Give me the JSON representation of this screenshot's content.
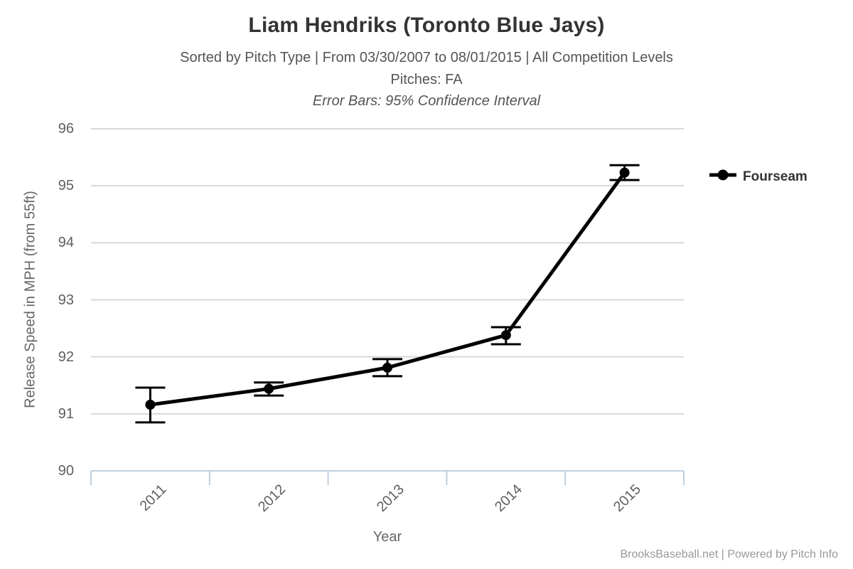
{
  "header": {
    "title": "Liam Hendriks (Toronto Blue Jays)",
    "subtitle": "Sorted by Pitch Type | From 03/30/2007 to 08/01/2015 | All Competition Levels",
    "pitches_line": "Pitches: FA",
    "error_bars_line": "Error Bars: 95% Confidence Interval"
  },
  "chart_data": {
    "type": "line",
    "title": "Liam Hendriks (Toronto Blue Jays)",
    "subtitle": "Sorted by Pitch Type | From 03/30/2007 to 08/01/2015 | All Competition Levels | Pitches: FA | Error Bars: 95% Confidence Interval",
    "categories": [
      "2011",
      "2012",
      "2013",
      "2014",
      "2015"
    ],
    "series": [
      {
        "name": "Fourseam",
        "color": "#000000",
        "values": [
          91.16,
          91.44,
          91.81,
          92.38,
          95.23
        ],
        "error_low": [
          90.85,
          91.32,
          91.66,
          92.22,
          95.1
        ],
        "error_high": [
          91.46,
          91.55,
          91.96,
          92.52,
          95.36
        ]
      }
    ],
    "xlabel": "Year",
    "ylabel": "Release Speed in MPH (from 55ft)",
    "ylim": [
      90,
      96
    ],
    "yticks": [
      90,
      91,
      92,
      93,
      94,
      95,
      96
    ],
    "grid": true,
    "legend_position": "right",
    "error_bars": "95% Confidence Interval"
  },
  "legend": {
    "items": [
      {
        "label": "Fourseam",
        "color": "#000000"
      }
    ]
  },
  "footer": {
    "credit": "BrooksBaseball.net | Powered by Pitch Info"
  },
  "colors": {
    "series": "#000000",
    "grid": "#d8d8d8",
    "axis": "#c0d0e0",
    "title": "#333333",
    "subtitle": "#555555",
    "tick_label": "#606060",
    "axis_title": "#666666",
    "legend_text": "#333333",
    "footer": "#999999"
  }
}
